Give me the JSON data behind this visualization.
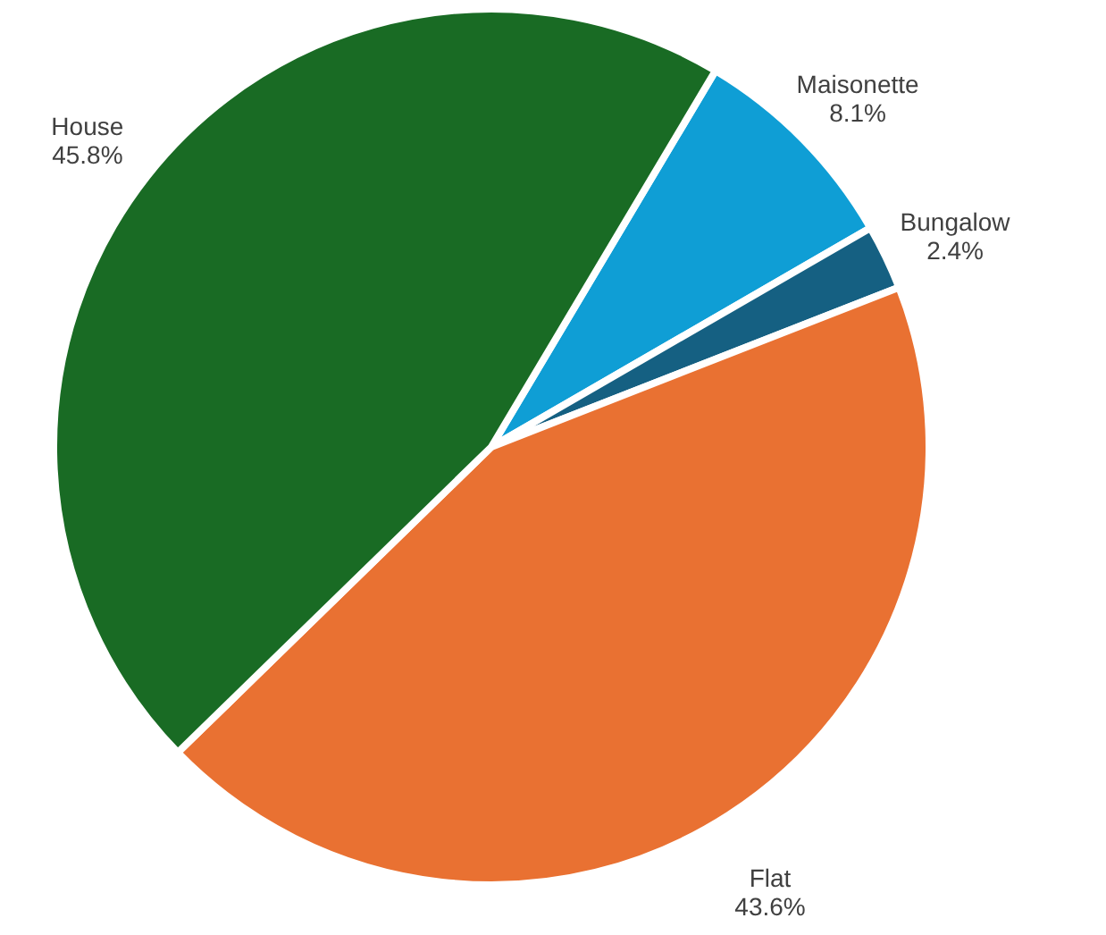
{
  "chart_data": {
    "type": "pie",
    "categories": [
      "Maisonette",
      "Bungalow",
      "Flat",
      "House"
    ],
    "values": [
      8.1,
      2.4,
      43.6,
      45.8
    ],
    "colors": [
      "#0f9ed5",
      "#156082",
      "#e97132",
      "#196b24"
    ],
    "value_labels": [
      "8.1%",
      "2.4%",
      "43.6%",
      "45.8%"
    ]
  }
}
